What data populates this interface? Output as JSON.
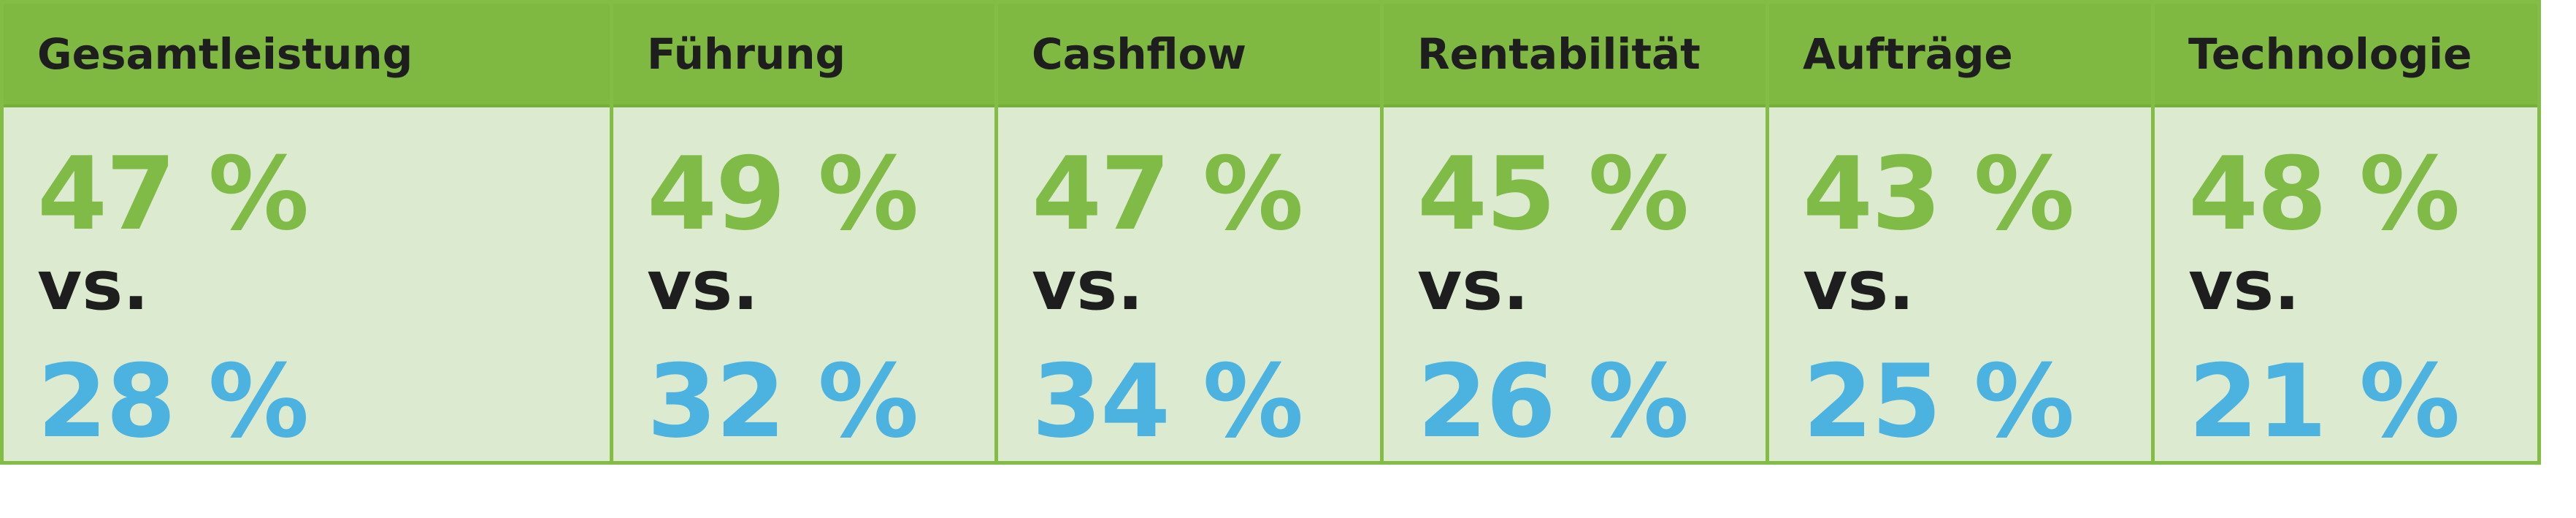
{
  "chart_data": {
    "type": "table",
    "columns": [
      "Gesamtleistung",
      "Führung",
      "Cashflow",
      "Rentabilität",
      "Aufträge",
      "Technologie"
    ],
    "series": [
      {
        "values": [
          47,
          49,
          47,
          45,
          43,
          48
        ]
      },
      {
        "values": [
          28,
          32,
          34,
          26,
          25,
          21
        ]
      }
    ],
    "values_top_text": [
      "47 %",
      "49 %",
      "47 %",
      "45 %",
      "43 %",
      "48 %"
    ],
    "values_bottom_text": [
      "28 %",
      "32 %",
      "34 %",
      "26 %",
      "25 %",
      "21 %"
    ],
    "separator_text": "vs.",
    "colors": {
      "header_bg": "#7fb942",
      "body_bg": "#dcebd0",
      "top_value": "#81bb47",
      "bottom_value": "#4cb2df",
      "text_dark": "#1e1e1e"
    }
  }
}
